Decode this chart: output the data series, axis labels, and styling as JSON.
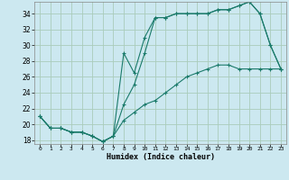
{
  "title": "",
  "xlabel": "Humidex (Indice chaleur)",
  "ylabel": "",
  "background_color": "#cce8f0",
  "grid_color": "#aaccbb",
  "line_color": "#1a7a6a",
  "xlim": [
    -0.5,
    23.5
  ],
  "ylim": [
    17.5,
    35.5
  ],
  "yticks": [
    18,
    20,
    22,
    24,
    26,
    28,
    30,
    32,
    34
  ],
  "xticks": [
    0,
    1,
    2,
    3,
    4,
    5,
    6,
    7,
    8,
    9,
    10,
    11,
    12,
    13,
    14,
    15,
    16,
    17,
    18,
    19,
    20,
    21,
    22,
    23
  ],
  "line1_x": [
    0,
    1,
    2,
    3,
    4,
    5,
    6,
    7,
    8,
    9,
    10,
    11,
    12,
    13,
    14,
    15,
    16,
    17,
    18,
    19,
    20,
    21,
    22,
    23
  ],
  "line1_y": [
    21.0,
    19.5,
    19.5,
    19.0,
    19.0,
    18.5,
    17.8,
    18.5,
    29.0,
    26.5,
    31.0,
    33.5,
    33.5,
    34.0,
    34.0,
    34.0,
    34.0,
    34.5,
    34.5,
    35.0,
    35.5,
    34.0,
    30.0,
    27.0
  ],
  "line2_x": [
    0,
    1,
    2,
    3,
    4,
    5,
    6,
    7,
    8,
    9,
    10,
    11,
    12,
    13,
    14,
    15,
    16,
    17,
    18,
    19,
    20,
    21,
    22,
    23
  ],
  "line2_y": [
    21.0,
    19.5,
    19.5,
    19.0,
    19.0,
    18.5,
    17.8,
    18.5,
    22.5,
    25.0,
    29.0,
    33.5,
    33.5,
    34.0,
    34.0,
    34.0,
    34.0,
    34.5,
    34.5,
    35.0,
    35.5,
    34.0,
    30.0,
    27.0
  ],
  "line3_x": [
    0,
    1,
    2,
    3,
    4,
    5,
    6,
    7,
    8,
    9,
    10,
    11,
    12,
    13,
    14,
    15,
    16,
    17,
    18,
    19,
    20,
    21,
    22,
    23
  ],
  "line3_y": [
    21.0,
    19.5,
    19.5,
    19.0,
    19.0,
    18.5,
    17.8,
    18.5,
    20.5,
    21.5,
    22.5,
    23.0,
    24.0,
    25.0,
    26.0,
    26.5,
    27.0,
    27.5,
    27.5,
    27.0,
    27.0,
    27.0,
    27.0,
    27.0
  ]
}
